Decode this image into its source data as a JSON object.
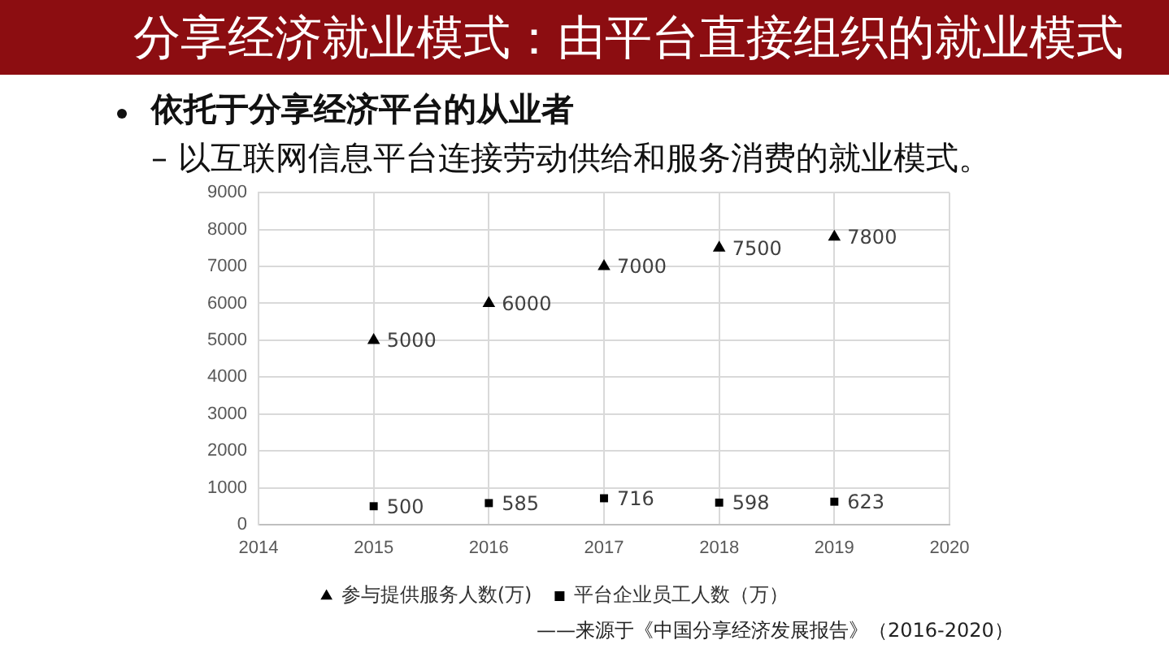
{
  "chart_data": {
    "type": "scatter",
    "title": "分享经济就业模式：由平台直接组织的就业模式",
    "subtitle": "依托于分享经济平台的从业者",
    "annotations": [
      "– 以互联网信息平台连接劳动供给和服务消费的就业模式。",
      "——来源于《中国分享经济发展报告》（2016-2020）"
    ],
    "x": [
      2015,
      2016,
      2017,
      2018,
      2019
    ],
    "series": [
      {
        "name": "参与提供服务人数(万)",
        "color": "#000000",
        "marker": "triangle",
        "values": [
          5000,
          6000,
          7000,
          7500,
          7800
        ]
      },
      {
        "name": "平台企业员工人数（万）",
        "color": "#000000",
        "marker": "square",
        "values": [
          500,
          585,
          716,
          598,
          623
        ]
      }
    ],
    "xlim": [
      2014,
      2020
    ],
    "xticks": [
      2014,
      2015,
      2016,
      2017,
      2018,
      2019,
      2020
    ],
    "ylim": [
      0,
      9000
    ],
    "yticks": [
      0,
      1000,
      2000,
      3000,
      4000,
      5000,
      6000,
      7000,
      8000,
      9000
    ],
    "grid": true,
    "legend": "bottom",
    "data_labels": true
  }
}
